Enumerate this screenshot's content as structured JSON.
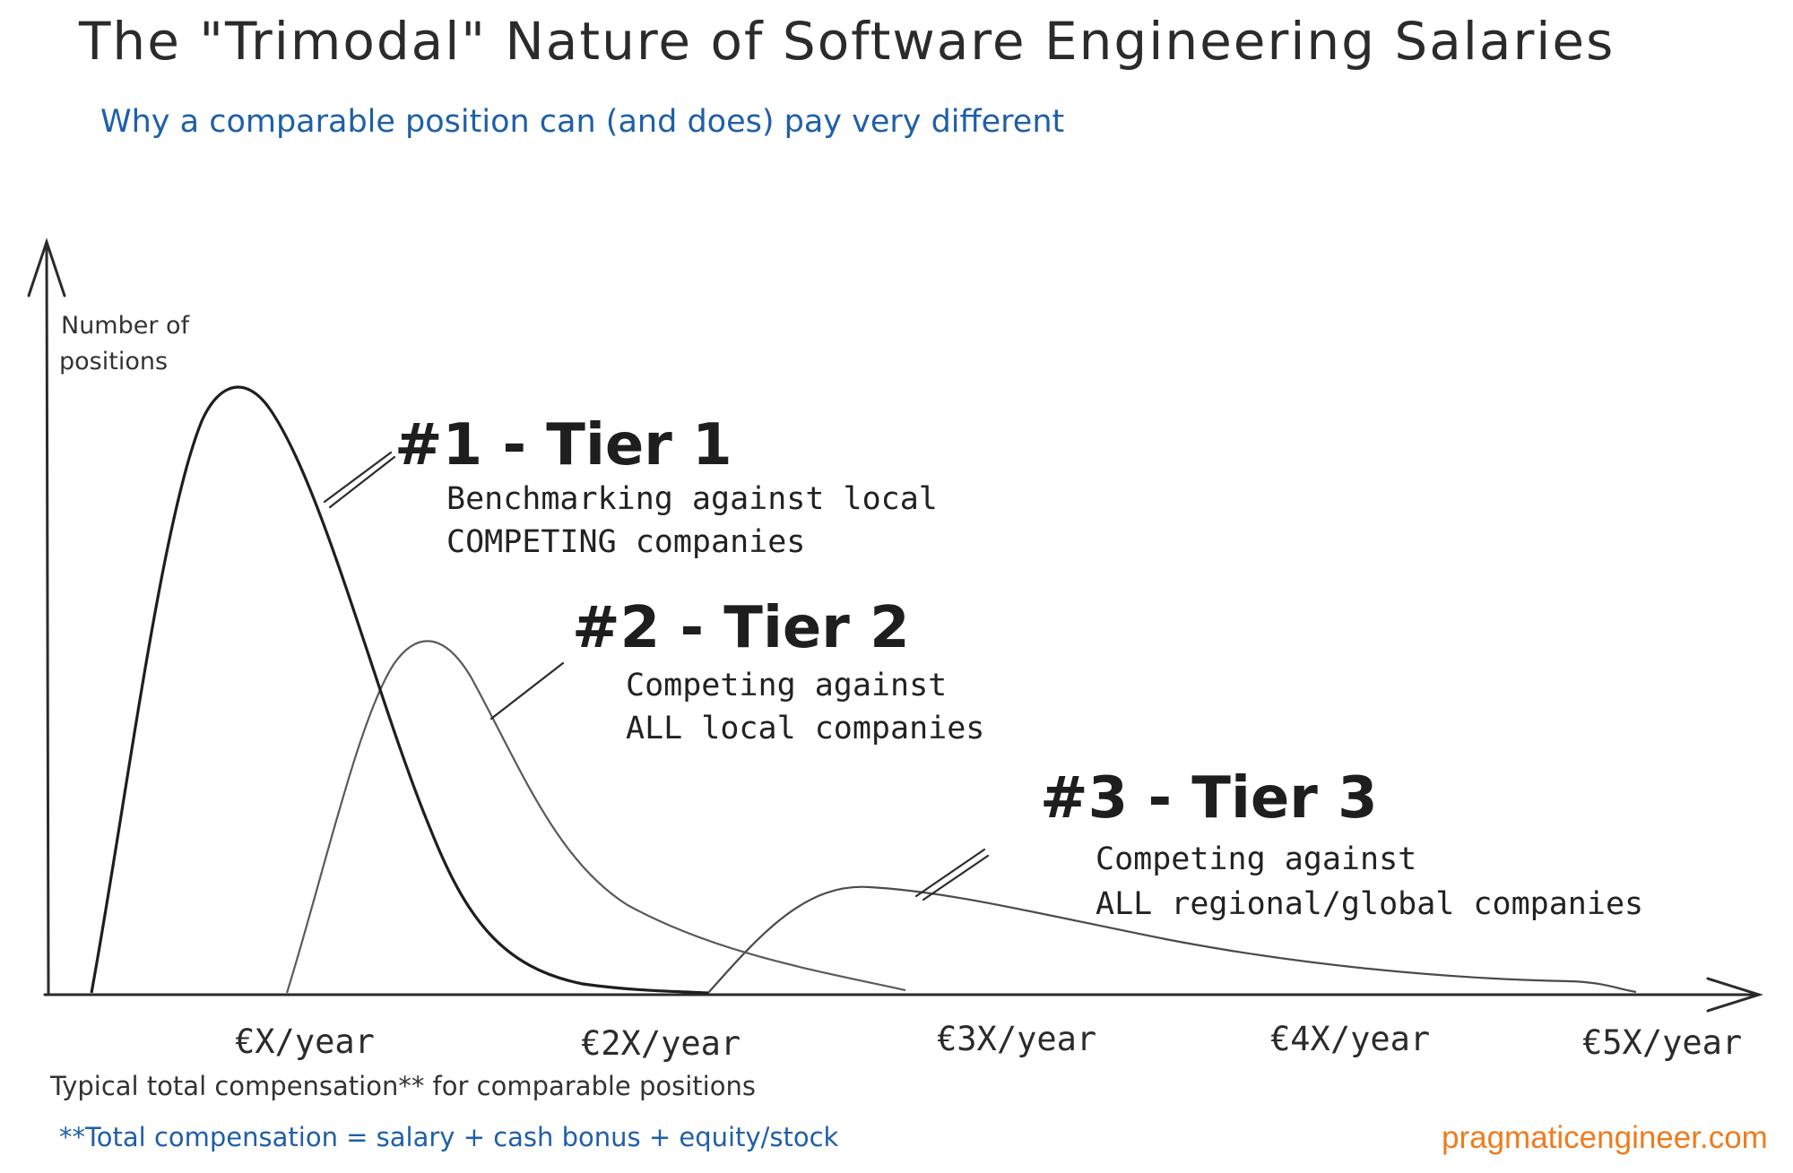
{
  "header": {
    "title": "The \"Trimodal\" Nature of Software Engineering Salaries",
    "subtitle": "Why a comparable position can (and does) pay very different"
  },
  "axes": {
    "y_label_line1": "Number of",
    "y_label_line2": "positions",
    "x_ticks": [
      "€X/year",
      "€2X/year",
      "€3X/year",
      "€4X/year",
      "€5X/year"
    ]
  },
  "tiers": [
    {
      "title": "#1 - Tier 1",
      "line1": "Benchmarking against local",
      "line2": "COMPETING companies"
    },
    {
      "title": "#2 - Tier 2",
      "line1": "Competing against",
      "line2": "ALL local companies"
    },
    {
      "title": "#3 - Tier 3",
      "line1": "Competing against",
      "line2": "ALL regional/global companies"
    }
  ],
  "footer": {
    "note": "Typical total compensation** for comparable positions",
    "footnote": "**Total compensation = salary + cash bonus + equity/stock",
    "site": "pragmaticengineer.com"
  },
  "colors": {
    "ink": "#2b2b2b",
    "tier1_curve": "#1e1e1e",
    "tier2_curve": "#5a5a5a",
    "tier3_curve": "#4a4a4a",
    "accent_blue": "#1f5fa8",
    "accent_orange": "#f07b1d"
  }
}
